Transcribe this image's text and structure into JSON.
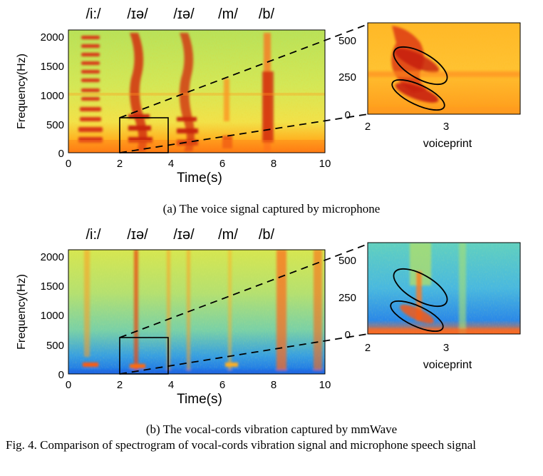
{
  "figure": {
    "colors": {
      "spec_a": "heat-yellow-red",
      "spec_b": "jet-blue-yellow-red",
      "ellipse": "#000000",
      "dash": "#000000"
    },
    "phonemes": [
      "/i:/",
      "/ɪə/",
      "/ɪə/",
      "/m/",
      "/b/"
    ],
    "main_axes": {
      "ylabel": "Frequency(Hz)",
      "xlabel": "Time(s)",
      "yticks": [
        "2000",
        "1500",
        "1000",
        "500",
        "0"
      ],
      "xticks": [
        "0",
        "2",
        "4",
        "6",
        "8",
        "10"
      ]
    },
    "zoom_axes": {
      "yticks": [
        "500",
        "250",
        "0"
      ],
      "xticks": [
        "2",
        "3"
      ],
      "xlabel": "voiceprint"
    },
    "panel_a": {
      "caption": "(a) The voice signal captured by microphone"
    },
    "panel_b": {
      "caption": "(b) The vocal-cords vibration captured by mmWave"
    },
    "fig_caption": "Fig. 4.   Comparison of spectrogram of vocal-cords vibration signal and microphone speech signal"
  }
}
